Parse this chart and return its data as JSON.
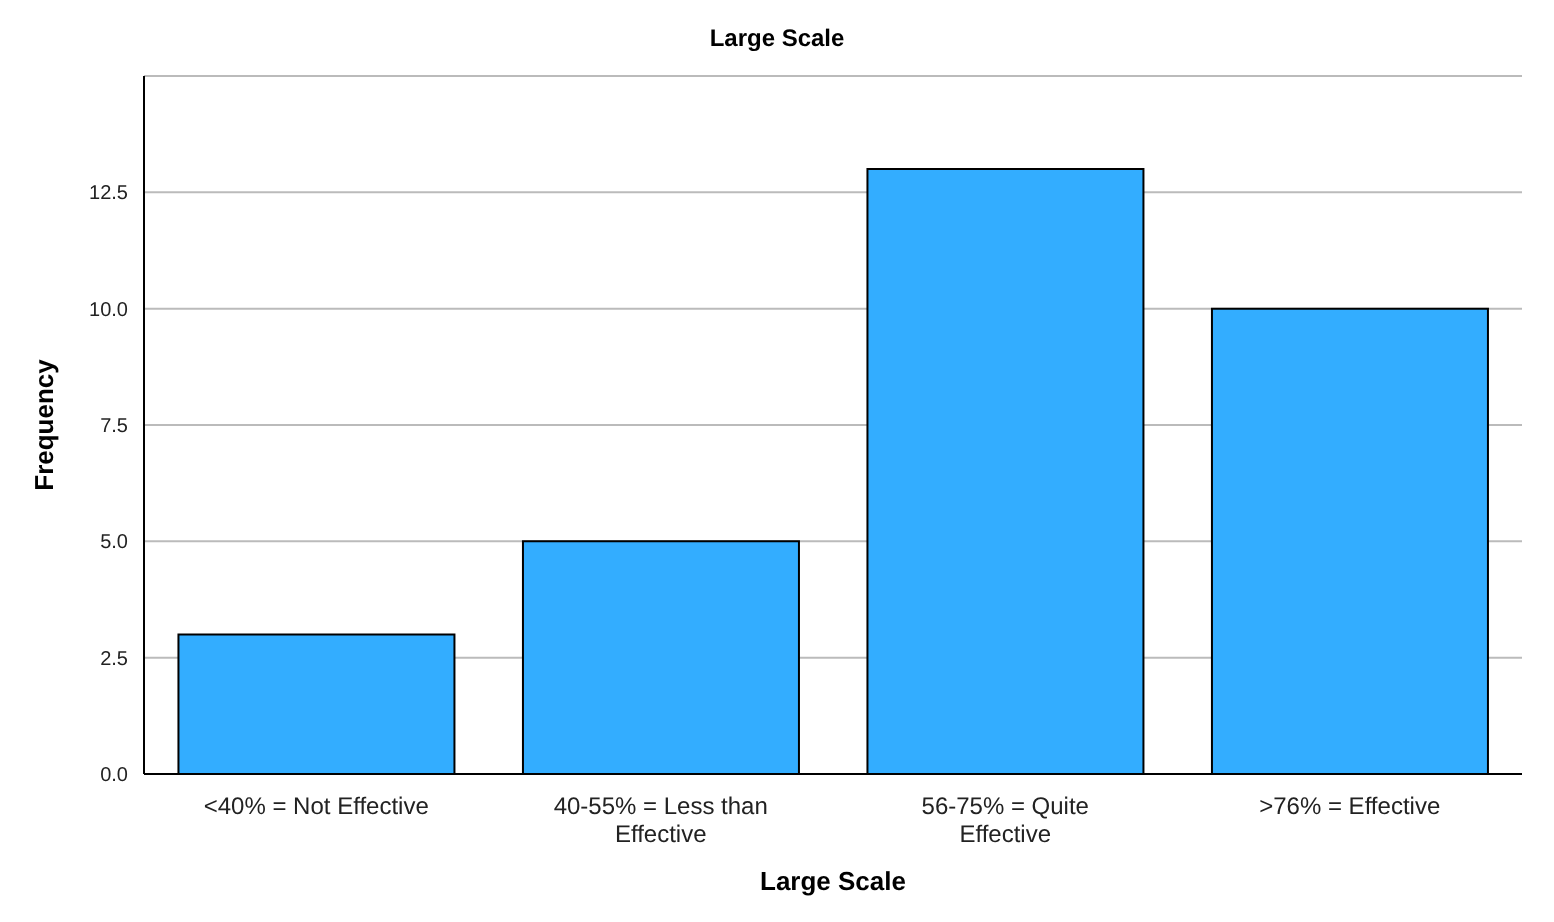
{
  "chart_data": {
    "type": "bar",
    "title": "Large Scale",
    "xlabel": "Large Scale",
    "ylabel": "Frequency",
    "categories": [
      "<40% = Not Effective",
      "40-55% = Less than Effective",
      "56-75% = Quite Effective",
      ">76% = Effective"
    ],
    "values": [
      3,
      5,
      13,
      10
    ],
    "color": "#33adff",
    "ylim": [
      0,
      15
    ],
    "yticks": [
      {
        "value": 0,
        "label": "0.0"
      },
      {
        "value": 2.5,
        "label": "2.5"
      },
      {
        "value": 5,
        "label": "5.0"
      },
      {
        "value": 7.5,
        "label": "7.5"
      },
      {
        "value": 10,
        "label": "10.0"
      },
      {
        "value": 12.5,
        "label": "12.5"
      }
    ],
    "grid": "y"
  }
}
